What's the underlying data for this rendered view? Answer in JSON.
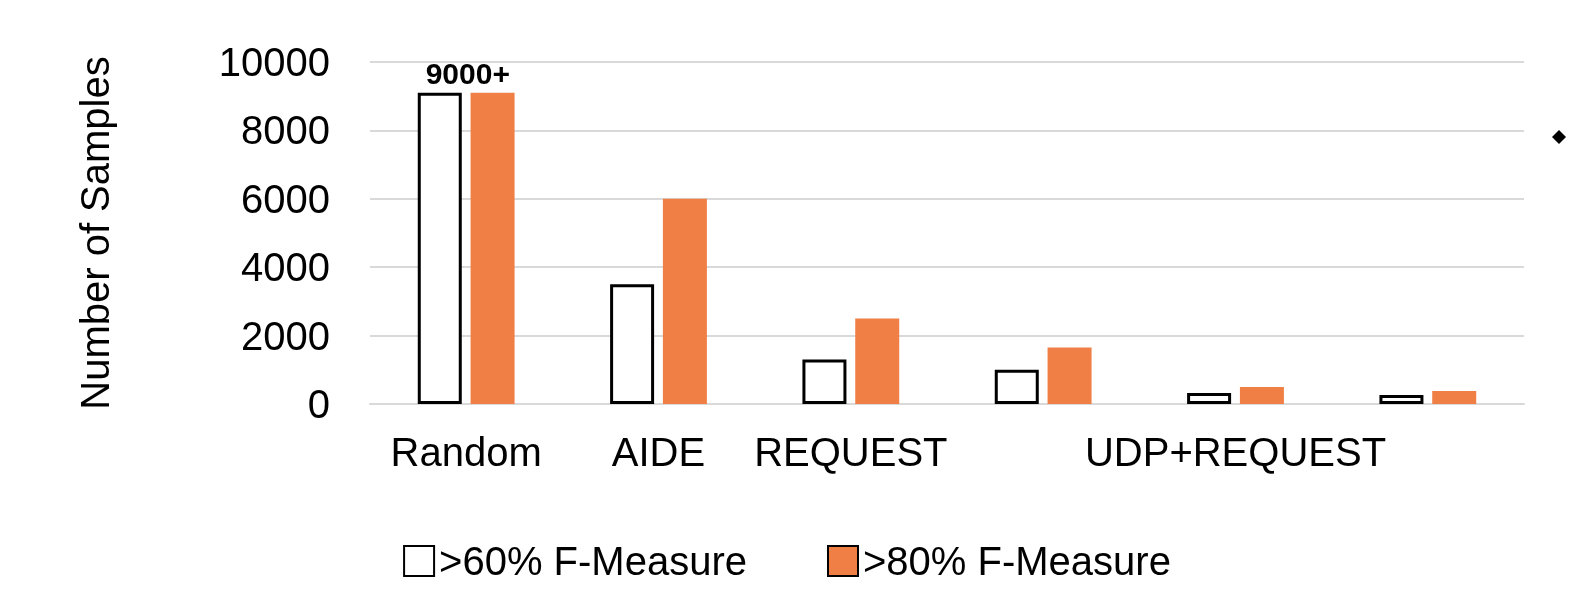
{
  "chart_data": {
    "type": "bar",
    "ylabel": "Number of Samples",
    "categories": [
      "Random",
      "AIDE",
      "REQUEST",
      null,
      "UDP+REQUEST",
      null
    ],
    "series": [
      {
        "name": ">60% F-Measure",
        "color": "#ffffff",
        "values": [
          9100,
          3500,
          1300,
          1000,
          320,
          260
        ]
      },
      {
        "name": ">80% F-Measure",
        "color": "#f07f45",
        "values": [
          9100,
          6000,
          2500,
          1650,
          500,
          380
        ]
      }
    ],
    "ylim": [
      0,
      10000
    ],
    "yticks": [
      0,
      2000,
      4000,
      6000,
      8000,
      10000
    ],
    "grid": "y",
    "legend": "bottom",
    "annotations": [
      {
        "text": "9000+",
        "x": "Random",
        "y": 9100
      }
    ]
  }
}
